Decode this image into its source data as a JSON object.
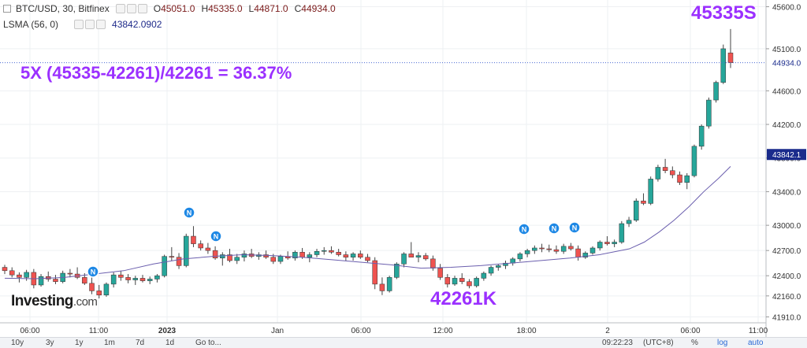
{
  "legend": {
    "symbol": "BTC/USD, 30, Bitfinex",
    "o_label": "O",
    "o_value": "45051.0",
    "h_label": "H",
    "h_value": "45335.0",
    "l_label": "L",
    "l_value": "44871.0",
    "c_label": "C",
    "c_value": "44934.0",
    "indicator": "LSMA (56, 0)",
    "indicator_value": "43842.0902"
  },
  "annotations": {
    "high": "45335S",
    "formula": "5X (45335-42261)/42261 = 36.37%",
    "low": "42261K"
  },
  "badges": [
    "N",
    "N",
    "N",
    "N",
    "N",
    "N"
  ],
  "bottombar": {
    "ranges": [
      "10y",
      "3y",
      "1y",
      "1m",
      "7d",
      "1d"
    ],
    "goto": "Go to...",
    "time": "09:22:23",
    "tz": "(UTC+8)",
    "percent": "%",
    "log": "log",
    "auto": "auto"
  },
  "watermark": {
    "brand": "Investing",
    "suffix": ".com"
  },
  "colors": {
    "up": "#26a69a",
    "down": "#ef5350",
    "lsma": "#6b5fae",
    "annotation": "#9b30ff",
    "current_price_bg": "#1a2b8c"
  },
  "chart_data": {
    "type": "candlestick",
    "yticks": [
      45600,
      45100,
      44600,
      44200,
      43800,
      43400,
      43000,
      42700,
      42400,
      42160,
      41910
    ],
    "ylim": [
      41840,
      45680
    ],
    "xticks": [
      "06:00",
      "11:00",
      "2023",
      "Jan",
      "06:00",
      "12:00",
      "18:00",
      "2",
      "06:00",
      "11:00"
    ],
    "price_labels": {
      "close": "44934.0",
      "lsma": "43842.1"
    },
    "candles": [
      [
        42500,
        42530,
        42420,
        42460
      ],
      [
        42460,
        42500,
        42380,
        42410
      ],
      [
        42410,
        42440,
        42320,
        42380
      ],
      [
        42380,
        42470,
        42340,
        42440
      ],
      [
        42440,
        42480,
        42250,
        42290
      ],
      [
        42290,
        42420,
        42270,
        42390
      ],
      [
        42390,
        42450,
        42330,
        42360
      ],
      [
        42360,
        42410,
        42300,
        42330
      ],
      [
        42330,
        42460,
        42310,
        42430
      ],
      [
        42430,
        42480,
        42380,
        42420
      ],
      [
        42420,
        42500,
        42360,
        42380
      ],
      [
        42380,
        42430,
        42290,
        42310
      ],
      [
        42310,
        42380,
        42180,
        42220
      ],
      [
        42220,
        42290,
        42130,
        42170
      ],
      [
        42170,
        42320,
        42150,
        42300
      ],
      [
        42300,
        42440,
        42260,
        42410
      ],
      [
        42410,
        42460,
        42340,
        42380
      ],
      [
        42380,
        42420,
        42310,
        42350
      ],
      [
        42350,
        42400,
        42290,
        42370
      ],
      [
        42370,
        42410,
        42320,
        42340
      ],
      [
        42340,
        42390,
        42300,
        42360
      ],
      [
        42360,
        42420,
        42320,
        42400
      ],
      [
        42400,
        42650,
        42380,
        42630
      ],
      [
        42630,
        42740,
        42580,
        42620
      ],
      [
        42620,
        42670,
        42480,
        42520
      ],
      [
        42520,
        42900,
        42500,
        42870
      ],
      [
        42870,
        42990,
        42740,
        42780
      ],
      [
        42780,
        42820,
        42700,
        42730
      ],
      [
        42730,
        42790,
        42660,
        42700
      ],
      [
        42700,
        42750,
        42590,
        42610
      ],
      [
        42610,
        42680,
        42520,
        42650
      ],
      [
        42650,
        42720,
        42560,
        42580
      ],
      [
        42580,
        42660,
        42540,
        42620
      ],
      [
        42620,
        42700,
        42570,
        42660
      ],
      [
        42660,
        42720,
        42610,
        42630
      ],
      [
        42630,
        42680,
        42590,
        42650
      ],
      [
        42650,
        42700,
        42600,
        42620
      ],
      [
        42620,
        42660,
        42540,
        42570
      ],
      [
        42570,
        42650,
        42540,
        42630
      ],
      [
        42630,
        42690,
        42590,
        42610
      ],
      [
        42610,
        42700,
        42580,
        42680
      ],
      [
        42680,
        42730,
        42600,
        42620
      ],
      [
        42620,
        42680,
        42560,
        42650
      ],
      [
        42650,
        42720,
        42620,
        42690
      ],
      [
        42690,
        42740,
        42650,
        42700
      ],
      [
        42700,
        42750,
        42660,
        42680
      ],
      [
        42680,
        42720,
        42630,
        42650
      ],
      [
        42650,
        42690,
        42580,
        42620
      ],
      [
        42620,
        42680,
        42580,
        42660
      ],
      [
        42660,
        42700,
        42600,
        42620
      ],
      [
        42620,
        42660,
        42560,
        42580
      ],
      [
        42580,
        42620,
        42240,
        42300
      ],
      [
        42300,
        42380,
        42170,
        42220
      ],
      [
        42220,
        42400,
        42200,
        42380
      ],
      [
        42380,
        42560,
        42360,
        42540
      ],
      [
        42540,
        42680,
        42500,
        42660
      ],
      [
        42660,
        42800,
        42630,
        42620
      ],
      [
        42620,
        42680,
        42560,
        42640
      ],
      [
        42640,
        42670,
        42580,
        42600
      ],
      [
        42600,
        42640,
        42460,
        42490
      ],
      [
        42490,
        42540,
        42350,
        42380
      ],
      [
        42380,
        42420,
        42260,
        42300
      ],
      [
        42300,
        42400,
        42280,
        42370
      ],
      [
        42370,
        42430,
        42300,
        42330
      ],
      [
        42330,
        42360,
        42250,
        42280
      ],
      [
        42280,
        42390,
        42260,
        42370
      ],
      [
        42370,
        42450,
        42340,
        42430
      ],
      [
        42430,
        42520,
        42400,
        42500
      ],
      [
        42500,
        42540,
        42460,
        42520
      ],
      [
        42520,
        42580,
        42480,
        42550
      ],
      [
        42550,
        42620,
        42520,
        42600
      ],
      [
        42600,
        42680,
        42570,
        42660
      ],
      [
        42660,
        42720,
        42620,
        42700
      ],
      [
        42700,
        42760,
        42660,
        42730
      ],
      [
        42730,
        42780,
        42680,
        42720
      ],
      [
        42720,
        42770,
        42680,
        42710
      ],
      [
        42710,
        42760,
        42660,
        42690
      ],
      [
        42690,
        42780,
        42660,
        42750
      ],
      [
        42750,
        42790,
        42700,
        42720
      ],
      [
        42720,
        42760,
        42580,
        42620
      ],
      [
        42620,
        42690,
        42600,
        42670
      ],
      [
        42670,
        42750,
        42650,
        42730
      ],
      [
        42730,
        42820,
        42700,
        42800
      ],
      [
        42800,
        42870,
        42760,
        42780
      ],
      [
        42780,
        42830,
        42740,
        42800
      ],
      [
        42800,
        43050,
        42780,
        43020
      ],
      [
        43020,
        43100,
        42980,
        43060
      ],
      [
        43060,
        43320,
        43040,
        43290
      ],
      [
        43290,
        43380,
        43240,
        43260
      ],
      [
        43260,
        43580,
        43240,
        43550
      ],
      [
        43550,
        43720,
        43520,
        43690
      ],
      [
        43690,
        43790,
        43620,
        43650
      ],
      [
        43650,
        43700,
        43560,
        43600
      ],
      [
        43600,
        43640,
        43480,
        43510
      ],
      [
        43510,
        43620,
        43430,
        43590
      ],
      [
        43590,
        43960,
        43570,
        43940
      ],
      [
        43940,
        44200,
        43900,
        44180
      ],
      [
        44180,
        44520,
        44150,
        44490
      ],
      [
        44490,
        44720,
        44460,
        44700
      ],
      [
        44700,
        45150,
        44680,
        45100
      ],
      [
        45051,
        45335,
        44871,
        44934
      ]
    ],
    "lsma": [
      [
        0,
        42370
      ],
      [
        10,
        42365
      ],
      [
        20,
        42380
      ],
      [
        30,
        42420
      ],
      [
        40,
        42460
      ],
      [
        50,
        42540
      ],
      [
        60,
        42600
      ],
      [
        70,
        42630
      ],
      [
        80,
        42650
      ],
      [
        90,
        42640
      ],
      [
        100,
        42620
      ],
      [
        110,
        42590
      ],
      [
        120,
        42560
      ],
      [
        130,
        42530
      ],
      [
        140,
        42490
      ],
      [
        150,
        42500
      ],
      [
        160,
        42520
      ],
      [
        170,
        42550
      ],
      [
        180,
        42580
      ],
      [
        190,
        42610
      ],
      [
        200,
        42650
      ],
      [
        210,
        42720
      ],
      [
        215,
        42800
      ],
      [
        220,
        42920
      ],
      [
        225,
        43060
      ],
      [
        230,
        43220
      ],
      [
        235,
        43400
      ],
      [
        240,
        43560
      ],
      [
        244,
        43700
      ]
    ]
  }
}
